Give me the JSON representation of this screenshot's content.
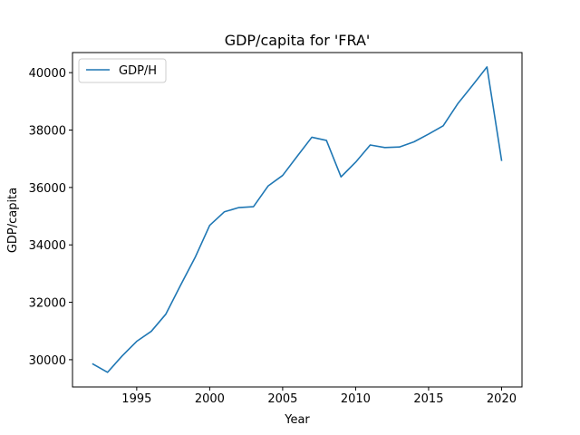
{
  "chart_data": {
    "type": "line",
    "title": "GDP/capita for 'FRA'",
    "xlabel": "Year",
    "ylabel": "GDP/capita",
    "xlim": [
      1990.6,
      2021.4
    ],
    "ylim": [
      29050,
      40700
    ],
    "xticks": [
      1995,
      2000,
      2005,
      2010,
      2015,
      2020
    ],
    "yticks": [
      30000,
      32000,
      34000,
      36000,
      38000,
      40000
    ],
    "grid": false,
    "legend_position": "upper left",
    "series": [
      {
        "name": "GDP/H",
        "color": "#1f77b4",
        "x": [
          1992,
          1993,
          1994,
          1995,
          1996,
          1997,
          1998,
          1999,
          2000,
          2001,
          2002,
          2003,
          2004,
          2005,
          2006,
          2007,
          2008,
          2009,
          2010,
          2011,
          2012,
          2013,
          2014,
          2015,
          2016,
          2017,
          2018,
          2019,
          2020
        ],
        "y": [
          29850,
          29560,
          30130,
          30640,
          30990,
          31590,
          32590,
          33560,
          34680,
          35150,
          35300,
          35330,
          36050,
          36420,
          37090,
          37750,
          37640,
          36370,
          36880,
          37480,
          37390,
          37410,
          37590,
          37860,
          38150,
          38920,
          39550,
          40200,
          36950
        ]
      }
    ]
  }
}
